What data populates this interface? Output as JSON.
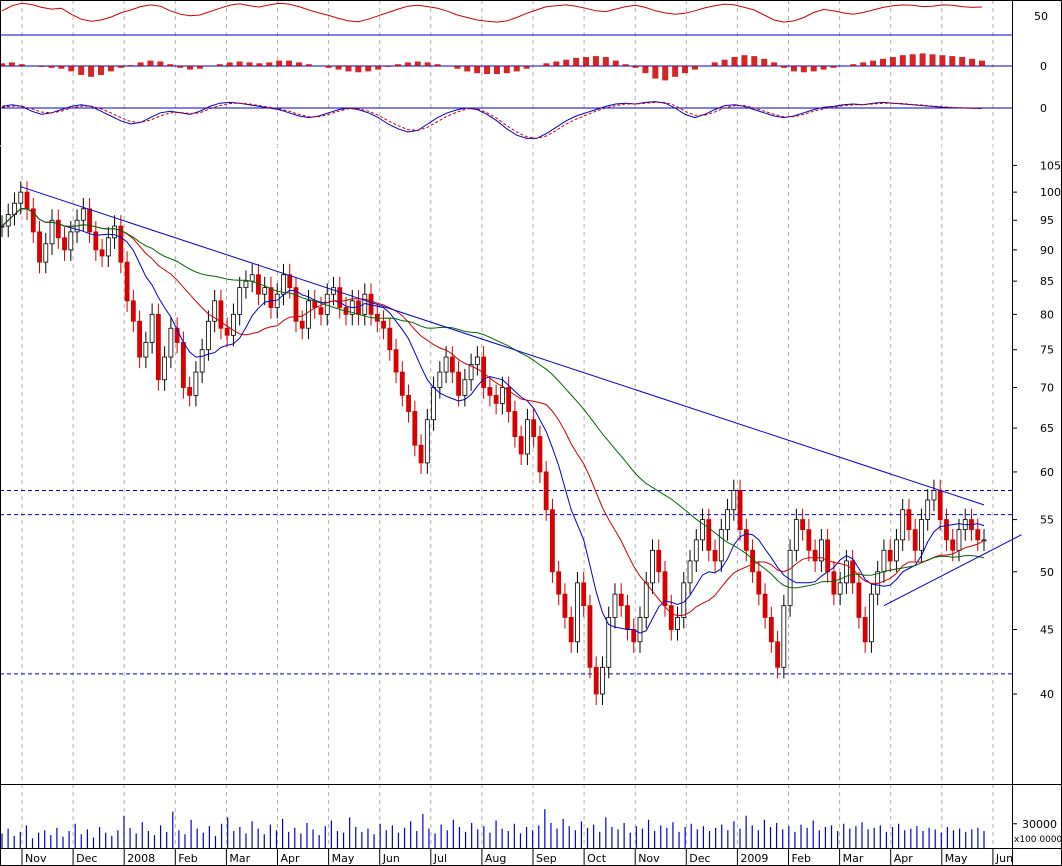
{
  "chart_data": [
    {
      "type": "line",
      "panel": "oscillator",
      "right_label": "50",
      "ylim": [
        0,
        100
      ],
      "reference_line": 50,
      "series": [
        {
          "color": "#cc0000",
          "values": [
            60,
            72,
            78,
            75,
            68,
            64,
            66,
            52,
            40,
            35,
            38,
            45,
            55,
            62,
            70,
            74,
            71,
            60,
            52,
            48,
            50,
            58,
            66,
            73,
            77,
            72,
            69,
            74,
            78,
            76,
            70,
            62,
            55,
            49,
            42,
            36,
            34,
            40,
            48,
            56,
            64,
            71,
            73,
            70,
            66,
            59,
            50,
            44,
            38,
            35,
            33,
            36,
            44,
            54,
            62,
            70,
            72,
            74,
            71,
            66,
            60,
            58,
            64,
            70,
            73,
            68,
            60,
            55,
            52,
            54,
            60,
            67,
            72,
            76,
            74,
            68,
            62,
            50,
            38,
            33,
            36,
            44,
            56,
            63,
            60,
            55,
            52,
            56,
            62,
            68,
            72,
            74,
            73,
            70,
            71,
            74,
            73,
            70,
            68,
            69
          ]
        }
      ]
    },
    {
      "type": "bar",
      "panel": "histogram",
      "right_label": "0",
      "reference_line": 0,
      "color": "#cc0000",
      "values": [
        0.15,
        0.2,
        0.1,
        0,
        -0.05,
        -0.1,
        -0.15,
        -0.3,
        -0.5,
        -0.6,
        -0.5,
        -0.3,
        -0.1,
        0.05,
        0.2,
        0.3,
        0.25,
        0.1,
        -0.1,
        -0.2,
        -0.15,
        0,
        0.1,
        0.2,
        0.25,
        0.2,
        0.15,
        0.2,
        0.3,
        0.3,
        0.2,
        0.1,
        0,
        -0.1,
        -0.2,
        -0.3,
        -0.35,
        -0.3,
        -0.2,
        -0.05,
        0.1,
        0.2,
        0.25,
        0.2,
        0.1,
        0,
        -0.15,
        -0.3,
        -0.4,
        -0.45,
        -0.45,
        -0.4,
        -0.3,
        -0.15,
        0,
        0.15,
        0.25,
        0.35,
        0.45,
        0.5,
        0.55,
        0.5,
        0.3,
        0.1,
        -0.1,
        -0.4,
        -0.7,
        -0.8,
        -0.6,
        -0.4,
        -0.2,
        0,
        0.2,
        0.35,
        0.5,
        0.6,
        0.55,
        0.4,
        0.2,
        -0.1,
        -0.3,
        -0.35,
        -0.3,
        -0.2,
        -0.1,
        0,
        0.1,
        0.2,
        0.3,
        0.4,
        0.5,
        0.6,
        0.65,
        0.7,
        0.65,
        0.6,
        0.55,
        0.5,
        0.4,
        0.3
      ]
    },
    {
      "type": "line",
      "panel": "macd",
      "right_label": "0",
      "reference_line": 0,
      "ylim": [
        -2,
        0.6
      ],
      "series": [
        {
          "color": "#0000cc",
          "values": [
            0.1,
            0.2,
            0.1,
            -0.2,
            -0.4,
            -0.3,
            -0.1,
            0.1,
            0.2,
            0.1,
            -0.2,
            -0.5,
            -0.8,
            -1.0,
            -0.9,
            -0.6,
            -0.3,
            -0.2,
            -0.3,
            -0.4,
            -0.2,
            0.1,
            0.3,
            0.35,
            0.3,
            0.2,
            0.1,
            0.0,
            -0.1,
            -0.3,
            -0.5,
            -0.6,
            -0.5,
            -0.3,
            -0.1,
            0.0,
            -0.1,
            -0.3,
            -0.6,
            -1.0,
            -1.3,
            -1.5,
            -1.4,
            -1.0,
            -0.6,
            -0.3,
            -0.1,
            0.0,
            -0.1,
            -0.4,
            -0.8,
            -1.3,
            -1.7,
            -1.9,
            -1.9,
            -1.6,
            -1.2,
            -0.8,
            -0.5,
            -0.3,
            -0.1,
            0.1,
            0.25,
            0.3,
            0.25,
            0.35,
            0.4,
            0.3,
            0.0,
            -0.4,
            -0.6,
            -0.4,
            -0.1,
            0.15,
            0.2,
            0.1,
            -0.1,
            -0.3,
            -0.5,
            -0.6,
            -0.5,
            -0.3,
            -0.1,
            0.05,
            0.1,
            0.2,
            0.25,
            0.2,
            0.3,
            0.35,
            0.3,
            0.25,
            0.2,
            0.15,
            0.1,
            0.05,
            0.02,
            0.0,
            -0.02,
            -0.03
          ]
        },
        {
          "color": "#cc0000",
          "values": [
            0.05,
            0.12,
            0.12,
            -0.05,
            -0.25,
            -0.3,
            -0.2,
            0.0,
            0.12,
            0.12,
            -0.05,
            -0.3,
            -0.6,
            -0.85,
            -0.9,
            -0.75,
            -0.5,
            -0.3,
            -0.28,
            -0.35,
            -0.3,
            -0.05,
            0.15,
            0.28,
            0.3,
            0.25,
            0.15,
            0.05,
            -0.05,
            -0.2,
            -0.4,
            -0.55,
            -0.55,
            -0.4,
            -0.2,
            -0.05,
            -0.05,
            -0.2,
            -0.45,
            -0.8,
            -1.1,
            -1.35,
            -1.4,
            -1.2,
            -0.85,
            -0.5,
            -0.25,
            -0.05,
            -0.05,
            -0.3,
            -0.65,
            -1.1,
            -1.5,
            -1.8,
            -1.9,
            -1.75,
            -1.4,
            -1.0,
            -0.7,
            -0.45,
            -0.2,
            0.0,
            0.15,
            0.25,
            0.25,
            0.3,
            0.35,
            0.35,
            0.15,
            -0.2,
            -0.45,
            -0.45,
            -0.25,
            0.0,
            0.15,
            0.15,
            0.0,
            -0.2,
            -0.4,
            -0.55,
            -0.55,
            -0.4,
            -0.2,
            -0.05,
            0.05,
            0.15,
            0.2,
            0.2,
            0.25,
            0.3,
            0.3,
            0.28,
            0.22,
            0.18,
            0.12,
            0.08,
            0.04,
            0.02,
            0.0,
            -0.02
          ]
        }
      ]
    },
    {
      "type": "candlestick",
      "panel": "price",
      "scale": "log",
      "ylim": [
        34,
        108
      ],
      "y_ticks": [
        40,
        45,
        50,
        55,
        60,
        65,
        70,
        75,
        80,
        85,
        90,
        95,
        100,
        105
      ],
      "x_ticks": [
        "Nov",
        "Dec",
        "2008",
        "Feb",
        "Mar",
        "Apr",
        "May",
        "Jun",
        "Jul",
        "Aug",
        "Sep",
        "Oct",
        "Nov",
        "Dec",
        "2009",
        "Feb",
        "Mar",
        "Apr",
        "May",
        "Jun"
      ],
      "closes": [
        94,
        96,
        98,
        100,
        97,
        93,
        88,
        91,
        95,
        92,
        90,
        93,
        95,
        97,
        93,
        90,
        89,
        92,
        94,
        88,
        82,
        79,
        74,
        76,
        80,
        71,
        74,
        78,
        76,
        70,
        69,
        72,
        75,
        79,
        82,
        78,
        77,
        80,
        84,
        85,
        86,
        83,
        84,
        81,
        83,
        86,
        84,
        79,
        78,
        82,
        81,
        80,
        83,
        84,
        81,
        80,
        82,
        80,
        83,
        80,
        79,
        78,
        75,
        72,
        69,
        67,
        63,
        61,
        66,
        70,
        72,
        74,
        72,
        69,
        71,
        73,
        74,
        70,
        69,
        68,
        70,
        67,
        64,
        62,
        66,
        64,
        60,
        56,
        50,
        48,
        46,
        44,
        49,
        47,
        42,
        40,
        42,
        46,
        48,
        47,
        45,
        44,
        46,
        49,
        52,
        50,
        47,
        45,
        46,
        49,
        51,
        53,
        55,
        52,
        51,
        54,
        56,
        58,
        54,
        52,
        50,
        48,
        46,
        44,
        42,
        47,
        52,
        55,
        54,
        52,
        51,
        53,
        50,
        48,
        49,
        51,
        49,
        46,
        44,
        48,
        50,
        52,
        51,
        53,
        56,
        54,
        52,
        55,
        57,
        58,
        55,
        53,
        52,
        54,
        55,
        54,
        53,
        53
      ],
      "moving_averages": [
        {
          "name": "",
          "color": "#0000cc",
          "period": 10
        },
        {
          "name": "",
          "color": "#cc0000",
          "period": 20
        },
        {
          "name": "",
          "color": "#006600",
          "period": 40
        }
      ],
      "horizontal_levels": [
        58,
        55.5,
        41.5
      ],
      "trendlines": [
        {
          "from": {
            "x_index": 3,
            "y": 101
          },
          "to": {
            "x_index": 157,
            "y": 56.5
          }
        },
        {
          "from": {
            "x_index": 141,
            "y": 47
          },
          "to": {
            "x_index": 163,
            "y": 53.5
          }
        }
      ]
    },
    {
      "type": "bar",
      "panel": "volume",
      "color": "#0000cc",
      "right_labels": [
        "30000",
        "x100 0000"
      ],
      "y_ticks": [
        0,
        30000
      ],
      "ylim": [
        0,
        78000
      ],
      "values": [
        18000,
        24000,
        15000,
        20000,
        28000,
        12000,
        19000,
        22000,
        16000,
        25000,
        14000,
        21000,
        30000,
        17000,
        23000,
        13000,
        26000,
        19000,
        15000,
        22000,
        40000,
        25000,
        18000,
        32000,
        21000,
        16000,
        28000,
        20000,
        45000,
        22000,
        17000,
        35000,
        24000,
        19000,
        27000,
        15000,
        30000,
        38000,
        21000,
        26000,
        18000,
        33000,
        24000,
        17000,
        29000,
        22000,
        36000,
        20000,
        25000,
        18000,
        31000,
        23000,
        16000,
        27000,
        34000,
        21000,
        19000,
        38000,
        26000,
        20000,
        24000,
        17000,
        30000,
        22000,
        28000,
        19000,
        25000,
        33000,
        21000,
        42000,
        24000,
        18000,
        29000,
        22000,
        35000,
        26000,
        20000,
        31000,
        23000,
        27000,
        19000,
        34000,
        24000,
        21000,
        30000,
        18000,
        26000,
        22000,
        28000,
        48000,
        31000,
        24000,
        36000,
        27000,
        22000,
        33000,
        25000,
        29000,
        20000,
        38000,
        26000,
        23000,
        31000,
        19000,
        27000,
        24000,
        35000,
        21000,
        28000,
        25000,
        32000,
        20000,
        26000,
        30000,
        23000,
        27000,
        21000,
        25000,
        29000,
        22000,
        33000,
        24000,
        40000,
        28000,
        22000,
        35000,
        26000,
        31000,
        23000,
        27000,
        20000,
        29000,
        25000,
        34000,
        22000,
        26000,
        28000,
        21000,
        30000,
        24000,
        27000,
        32000,
        23000,
        25000,
        28000,
        20000,
        26000,
        30000,
        22000,
        24000,
        27000,
        21000,
        25000,
        23000,
        19000,
        26000,
        22000,
        24000,
        20000,
        23000,
        25000,
        21000
      ]
    }
  ]
}
